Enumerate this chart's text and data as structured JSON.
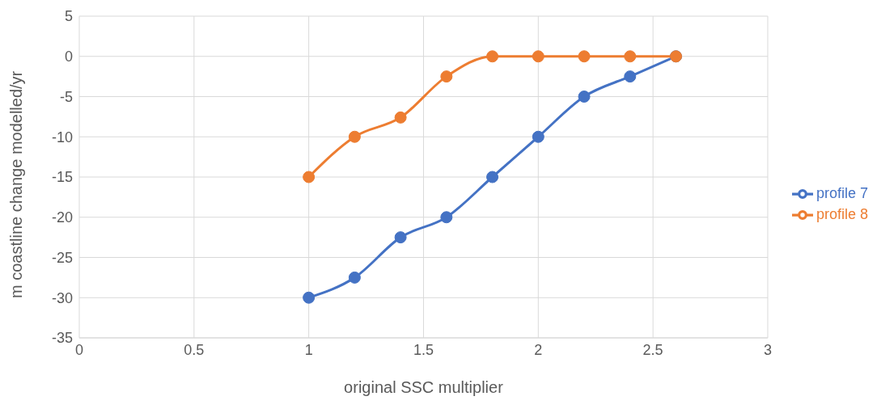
{
  "chart_data": {
    "type": "line",
    "xlabel": "original SSC multiplier",
    "ylabel": "m coastline change modelled/yr",
    "x": [
      1,
      1.2,
      1.4,
      1.6,
      1.8,
      2,
      2.2,
      2.4,
      2.6
    ],
    "series": [
      {
        "name": "profile 7",
        "color": "#4472c4",
        "values": [
          -30,
          -27.5,
          -22.5,
          -20,
          -15,
          -10,
          -5,
          -2.5,
          0
        ]
      },
      {
        "name": "profile 8",
        "color": "#ed7d31",
        "values": [
          -15,
          -10,
          -7.6,
          -2.5,
          0,
          0,
          0,
          0,
          0
        ]
      }
    ],
    "xlim": [
      0,
      3
    ],
    "xticks": [
      0,
      0.5,
      1,
      1.5,
      2,
      2.5,
      3
    ],
    "ylim": [
      -35,
      5
    ],
    "yticks": [
      -35,
      -30,
      -25,
      -20,
      -15,
      -10,
      -5,
      0,
      5
    ],
    "grid": true,
    "legend": "right",
    "marker": "circle",
    "line_style": "solid"
  }
}
